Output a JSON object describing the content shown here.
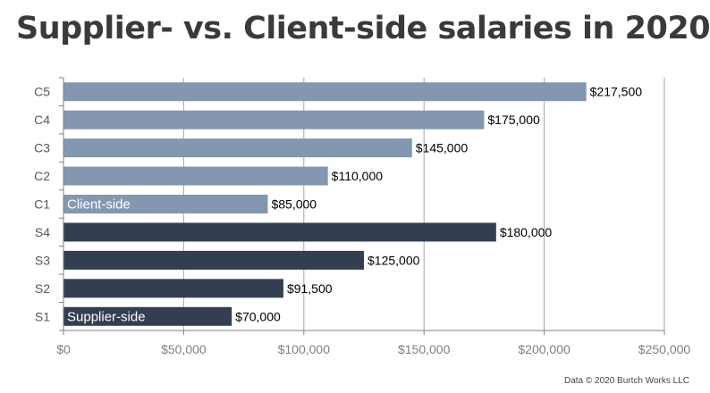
{
  "chart_data": {
    "type": "bar",
    "orientation": "horizontal",
    "title": "Supplier- vs. Client-side salaries in 2020",
    "categories": [
      "C5",
      "C4",
      "C3",
      "C2",
      "C1",
      "S4",
      "S3",
      "S2",
      "S1"
    ],
    "values": [
      217500,
      175000,
      145000,
      110000,
      85000,
      180000,
      125000,
      91500,
      70000
    ],
    "value_labels": [
      "$217,500",
      "$175,000",
      "$145,000",
      "$110,000",
      "$85,000",
      "$180,000",
      "$125,000",
      "$91,500",
      "$70,000"
    ],
    "groups": [
      "client",
      "client",
      "client",
      "client",
      "client",
      "supplier",
      "supplier",
      "supplier",
      "supplier"
    ],
    "group_labels": {
      "C1": "Client-side",
      "S1": "Supplier-side"
    },
    "xlim": [
      0,
      250000
    ],
    "xticks": [
      0,
      50000,
      100000,
      150000,
      200000,
      250000
    ],
    "xtick_labels": [
      "$0",
      "$50,000",
      "$100,000",
      "$150,000",
      "$200,000",
      "$250,000"
    ],
    "xlabel": "",
    "ylabel": "",
    "grid": true,
    "legend": "none",
    "colors": {
      "client": "#8497b0",
      "supplier": "#333f50"
    }
  },
  "source": "Data © 2020 Burtch Works LLC"
}
